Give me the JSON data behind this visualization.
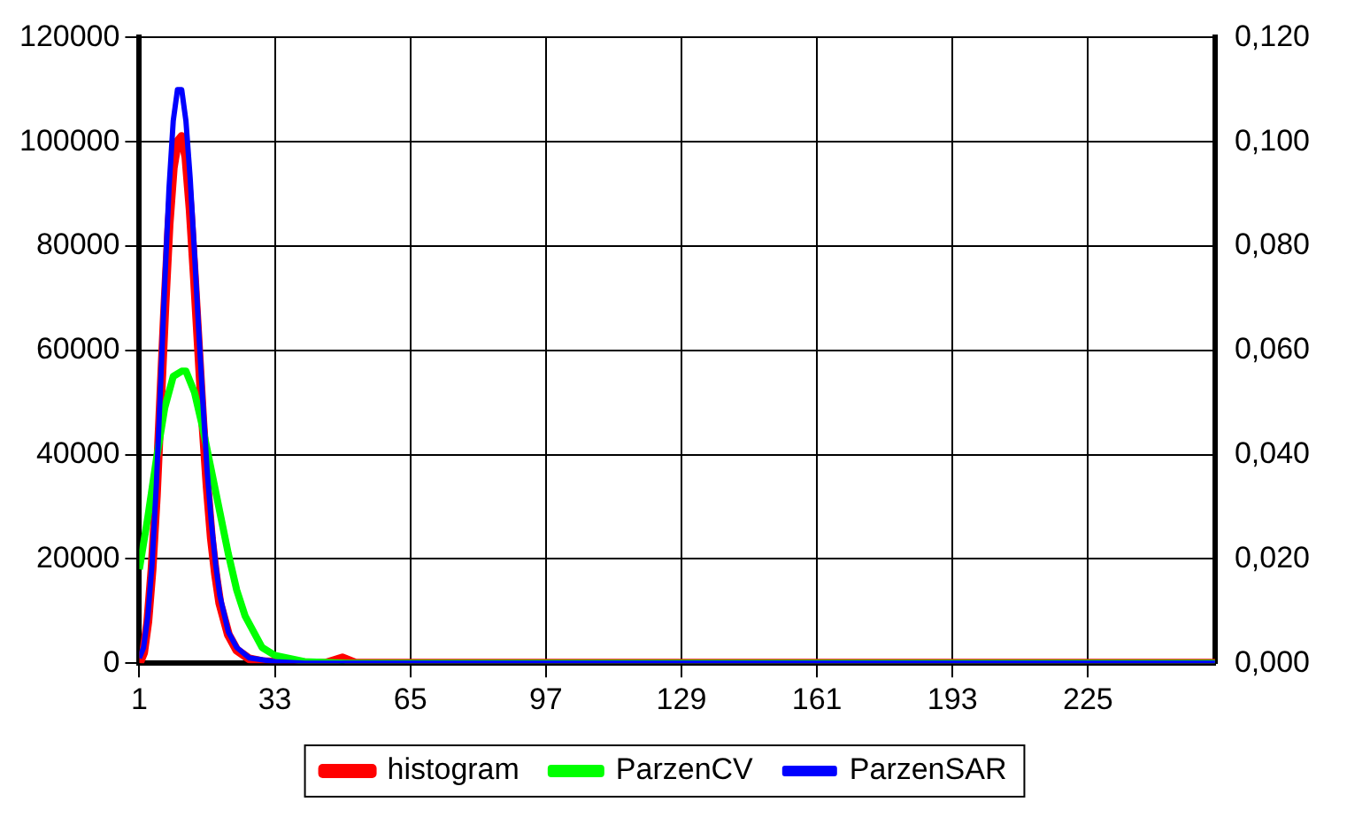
{
  "chart_data": {
    "type": "line",
    "xlim": [
      1,
      255
    ],
    "xticks": [
      1,
      33,
      65,
      97,
      129,
      161,
      193,
      225
    ],
    "ylim": [
      0,
      120000
    ],
    "yticks": [
      0,
      20000,
      40000,
      60000,
      80000,
      100000,
      120000
    ],
    "y2lim": [
      0,
      0.12
    ],
    "y2ticks": [
      {
        "value": 0,
        "label": "0,000"
      },
      {
        "value": 0.02,
        "label": "0,020"
      },
      {
        "value": 0.04,
        "label": "0,040"
      },
      {
        "value": 0.06,
        "label": "0,060"
      },
      {
        "value": 0.08,
        "label": "0,080"
      },
      {
        "value": 0.1,
        "label": "0,100"
      },
      {
        "value": 0.12,
        "label": "0,120"
      }
    ],
    "grid": true,
    "legend": "bottom",
    "marker": "none",
    "line_style": "solid",
    "series": [
      {
        "name": "histogram",
        "color": "#ff0000",
        "x": [
          1,
          2,
          3,
          4,
          5,
          6,
          7,
          8,
          9,
          10,
          11,
          12,
          13,
          14,
          15,
          16,
          17,
          18,
          19,
          20,
          22,
          24,
          27,
          30,
          35,
          45,
          49,
          52,
          255
        ],
        "values": [
          0,
          2000,
          8000,
          18000,
          32000,
          50000,
          68000,
          84000,
          95000,
          100000,
          101000,
          97000,
          87000,
          74000,
          60000,
          46000,
          34000,
          24000,
          17000,
          11500,
          5500,
          2500,
          800,
          300,
          100,
          0,
          1000,
          0,
          0
        ]
      },
      {
        "name": "ParzenCV",
        "color": "#00ff00",
        "axis": "y2",
        "x": [
          1,
          3,
          5,
          7,
          9,
          11,
          12,
          14,
          16,
          18,
          20,
          22,
          24,
          26,
          28,
          30,
          33,
          40,
          50,
          255
        ],
        "values": [
          0.018,
          0.028,
          0.039,
          0.049,
          0.055,
          0.056,
          0.056,
          0.052,
          0.045,
          0.037,
          0.029,
          0.021,
          0.014,
          0.009,
          0.006,
          0.003,
          0.0015,
          0.0003,
          0,
          0
        ]
      },
      {
        "name": "ParzenSAR",
        "color": "#0000ff",
        "axis": "y2",
        "x": [
          1,
          2,
          3,
          4,
          5,
          6,
          7,
          8,
          9,
          10,
          11,
          12,
          13,
          14,
          15,
          16,
          17,
          18,
          19,
          20,
          22,
          24,
          27,
          33,
          40,
          255
        ],
        "values": [
          0.001,
          0.003,
          0.009,
          0.019,
          0.034,
          0.053,
          0.073,
          0.091,
          0.104,
          0.11,
          0.11,
          0.104,
          0.093,
          0.079,
          0.064,
          0.05,
          0.037,
          0.027,
          0.019,
          0.013,
          0.006,
          0.003,
          0.001,
          0.0003,
          0,
          0
        ]
      }
    ]
  }
}
